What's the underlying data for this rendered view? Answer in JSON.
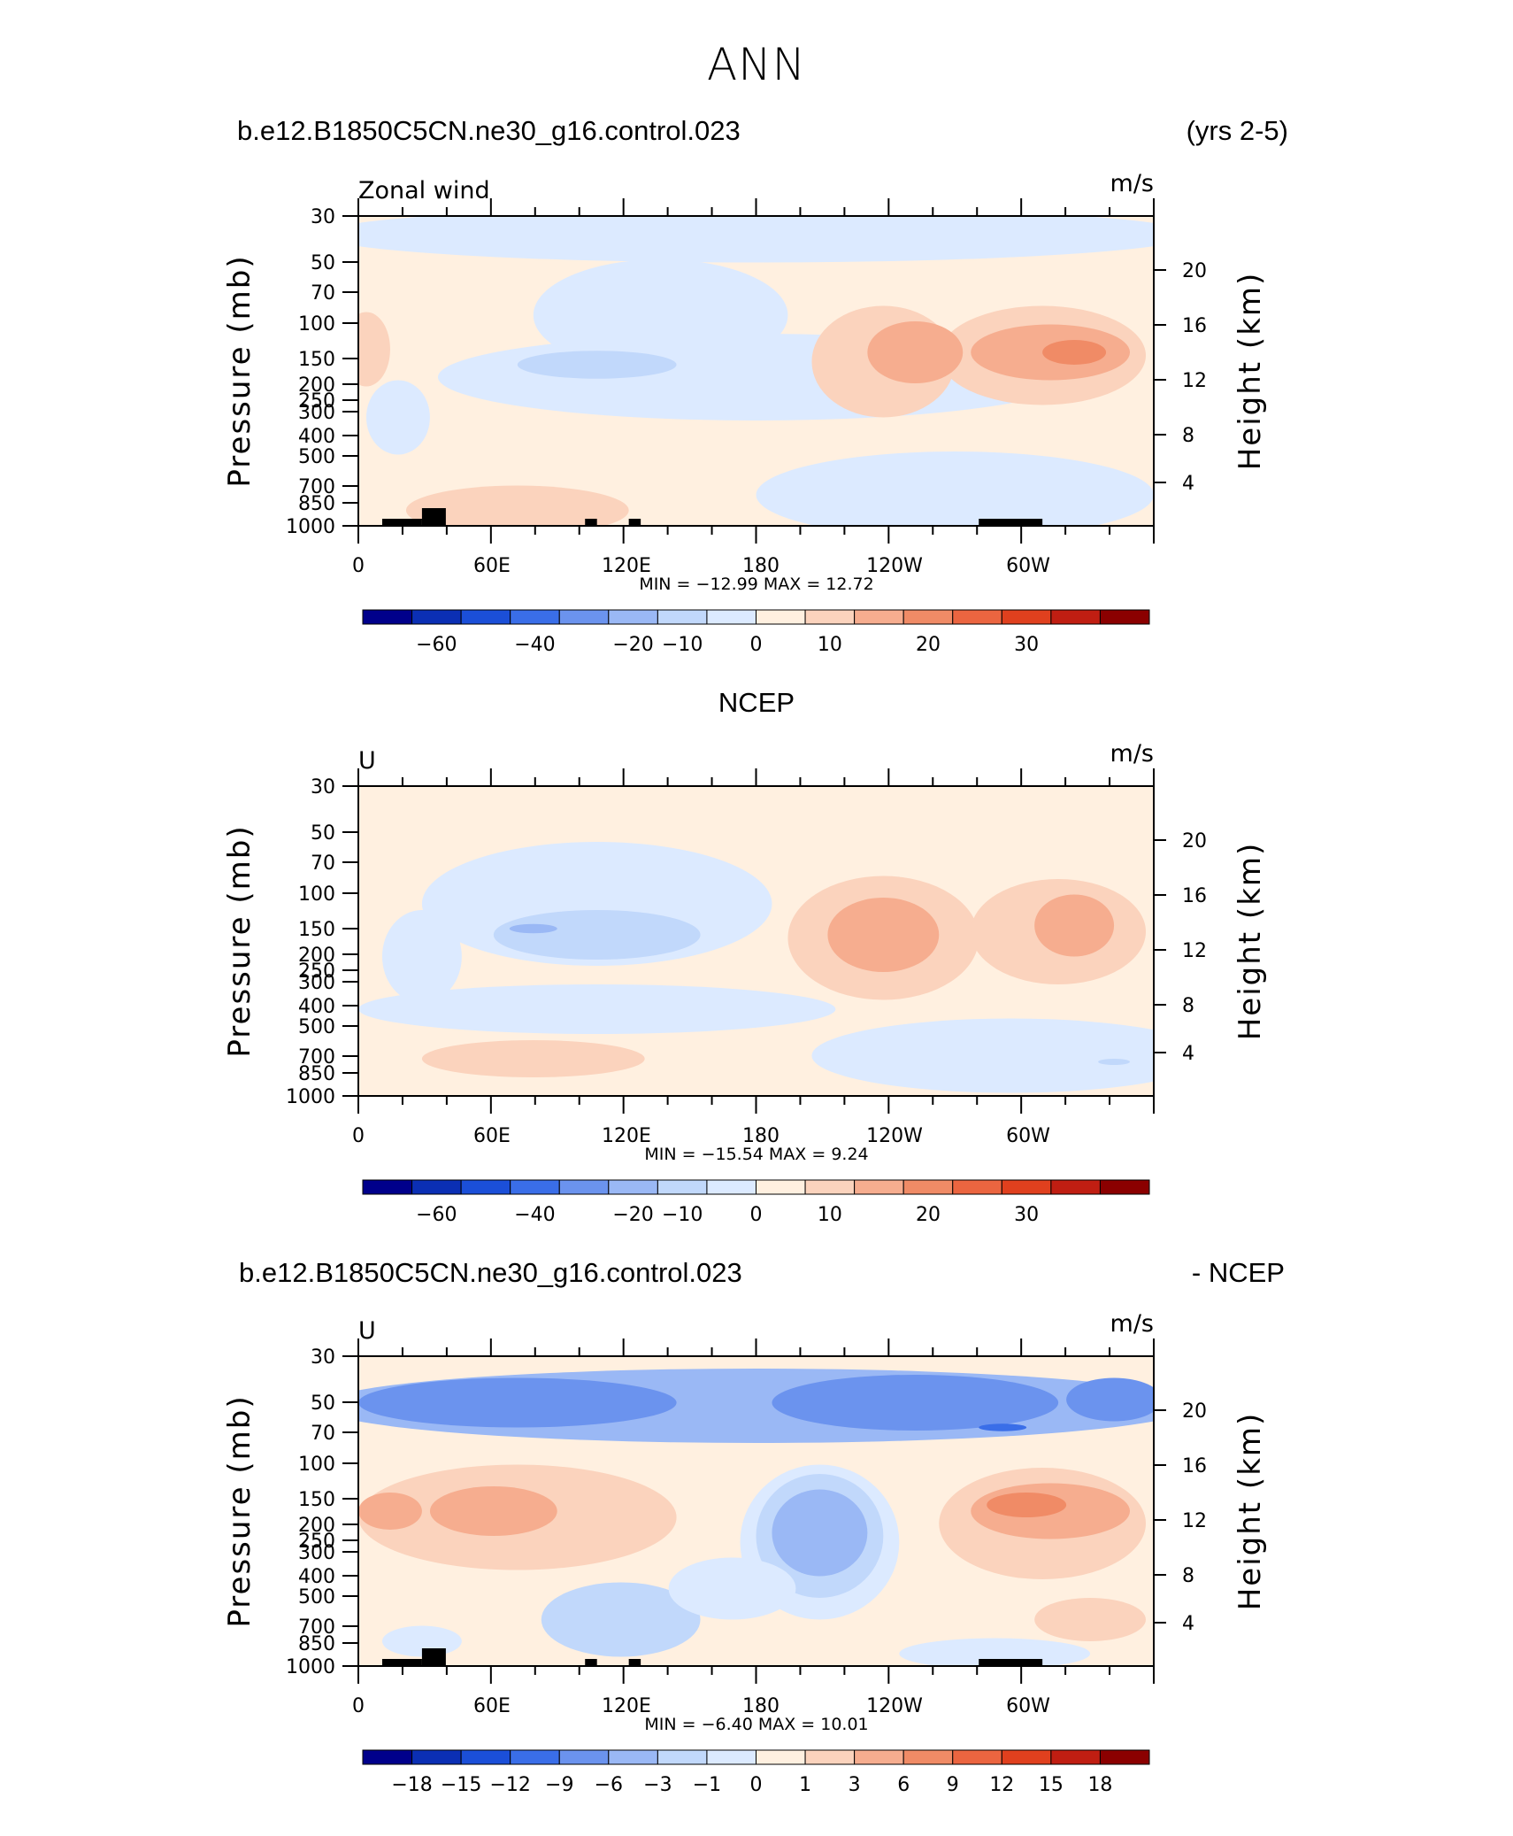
{
  "page": {
    "title": "ANN",
    "case_name": "b.e12.B1850C5CN.ne30_g16.control.023",
    "years": "(yrs 2-5)",
    "obs_title": "NCEP",
    "diff_case_name": "b.e12.B1850C5CN.ne30_g16.control.023",
    "diff_suffix": "- NCEP"
  },
  "axes": {
    "pressure_label": "Pressure (mb)",
    "height_label": "Height (km)",
    "pressure_ticks": [
      "30",
      "50",
      "70",
      "100",
      "150",
      "200",
      "250",
      "300",
      "400",
      "500",
      "700",
      "850",
      "1000"
    ],
    "height_ticks": [
      "20",
      "16",
      "12",
      "8",
      "4"
    ],
    "lon_ticks": [
      "0",
      "60E",
      "120E",
      "180",
      "120W",
      "60W"
    ]
  },
  "colors": {
    "levels": [
      "#00008b",
      "#0b2fb4",
      "#1b4fd8",
      "#3a6ee8",
      "#6b93ee",
      "#9ab8f5",
      "#c1d8fb",
      "#dceaff",
      "#fff0e0",
      "#fbd3bd",
      "#f6ad8f",
      "#f08b66",
      "#eb6540",
      "#e0401e",
      "#c01e12",
      "#8b0000"
    ]
  },
  "chart_data": [
    {
      "type": "heatmap",
      "subtitle_left": "Zonal wind",
      "units": "m/s",
      "stats": "MIN = −12.99   MAX =   12.72",
      "min": -12.99,
      "max": 12.72,
      "colorbar_labels": [
        "−60",
        "−40",
        "−20",
        "−10",
        "0",
        "10",
        "20",
        "30"
      ]
    },
    {
      "type": "heatmap",
      "subtitle_left": "U",
      "units": "m/s",
      "stats": "MIN = −15.54   MAX =    9.24",
      "min": -15.54,
      "max": 9.24,
      "colorbar_labels": [
        "−60",
        "−40",
        "−20",
        "−10",
        "0",
        "10",
        "20",
        "30"
      ]
    },
    {
      "type": "heatmap",
      "subtitle_left": "U",
      "units": "m/s",
      "stats": "MIN =    −6.40   MAX =   10.01",
      "min": -6.4,
      "max": 10.01,
      "colorbar_labels": [
        "−18",
        "−15",
        "−12",
        "−9",
        "−6",
        "−3",
        "−1",
        "0",
        "1",
        "3",
        "6",
        "9",
        "12",
        "15",
        "18"
      ]
    }
  ]
}
